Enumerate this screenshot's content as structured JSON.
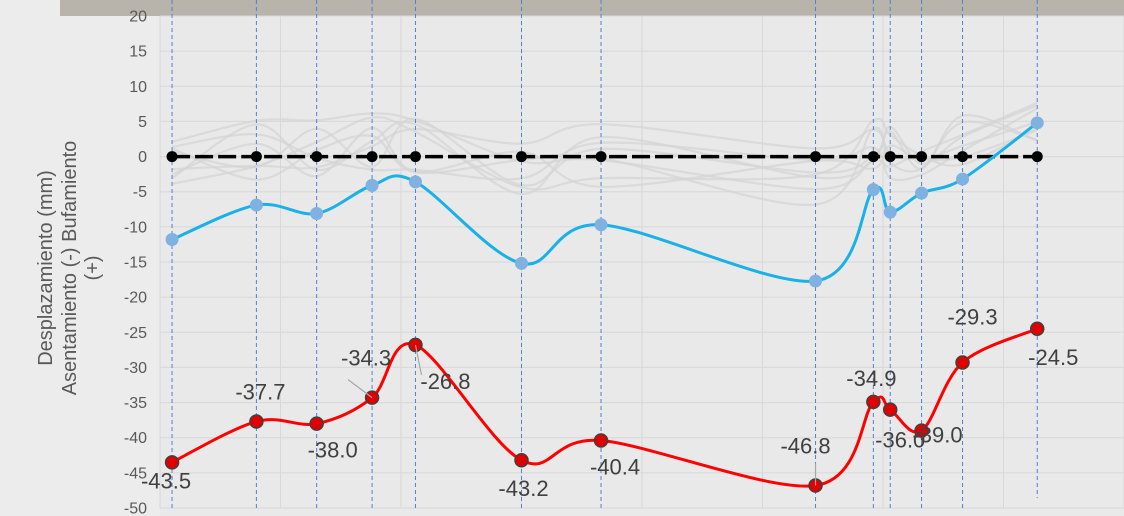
{
  "chart_data": {
    "type": "line",
    "title": "",
    "xlabel": "",
    "ylabel_lines": [
      "Desplazamiento (mm)",
      "Asentamiento (-) Bufamiento",
      "(+)"
    ],
    "ylim": [
      -50,
      20
    ],
    "yticks": [
      20,
      15,
      10,
      5,
      0,
      -5,
      -10,
      -15,
      -20,
      -25,
      -30,
      -35,
      -40,
      -45,
      -50
    ],
    "grid": true,
    "colors": {
      "baseline": "#000000",
      "blue_series": "#1ab0e8",
      "blue_marker": "#7fb2e0",
      "red_series": "#ff0000",
      "red_marker": "#e00000",
      "guides": "#4f81d6",
      "ghost": "#d4d4d4",
      "plot_bg": "#e9e9e9",
      "photo": "#b9b4ab"
    },
    "x": [
      0.5,
      4.0,
      6.5,
      8.8,
      10.6,
      15.0,
      18.3,
      27.2,
      29.6,
      30.3,
      31.6,
      33.3,
      36.4
    ],
    "series": [
      {
        "values": [
          0,
          0,
          0,
          0,
          0,
          0,
          0,
          0,
          0,
          0,
          0,
          0,
          0
        ]
      },
      {
        "values": [
          -11.8,
          -6.9,
          -8.1,
          -4.1,
          -3.6,
          -15.2,
          -9.7,
          -17.7,
          -4.7,
          -7.9,
          -5.2,
          -3.2,
          4.8
        ]
      },
      {
        "values": [
          -43.5,
          -37.7,
          -38.0,
          -34.3,
          -26.8,
          -43.2,
          -40.4,
          -46.8,
          -34.9,
          -36.0,
          -39.0,
          -29.3,
          -24.5
        ]
      }
    ],
    "data_labels": [
      "-43.5",
      "-37.7",
      "-38.0",
      "-34.3",
      "-26.8",
      "-43.2",
      "-40.4",
      "-46.8",
      "-34.9",
      "-36.0",
      "-39.0",
      "-29.3",
      "-24.5"
    ],
    "ghost_lines": 8
  }
}
